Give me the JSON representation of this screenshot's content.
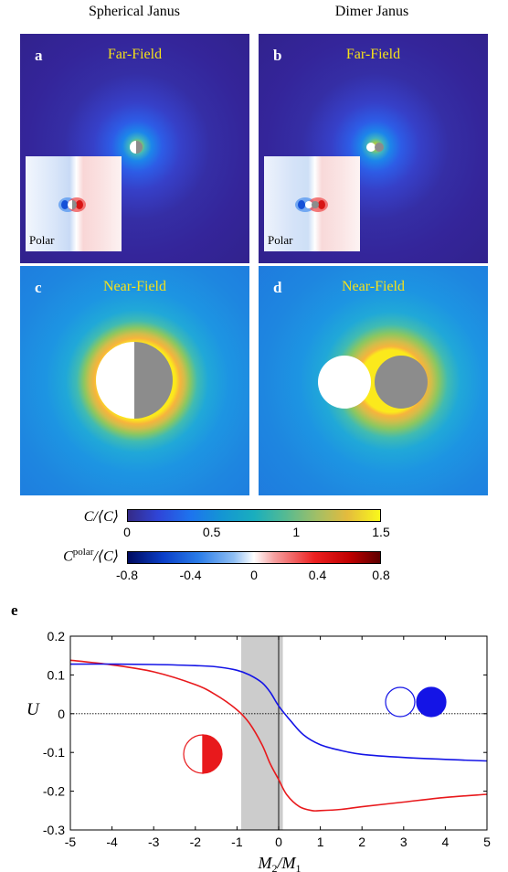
{
  "columns": {
    "left_title": "Spherical Janus",
    "right_title": "Dimer Janus"
  },
  "panels": {
    "a": {
      "letter": "a",
      "title": "Far-Field",
      "inset_label": "Polar"
    },
    "b": {
      "letter": "b",
      "title": "Far-Field",
      "inset_label": "Polar"
    },
    "c": {
      "letter": "c",
      "title": "Near-Field"
    },
    "d": {
      "letter": "d",
      "title": "Near-Field"
    }
  },
  "colorbars": {
    "concentration": {
      "label": "C/⟨C⟩",
      "ticks": [
        "0",
        "0.5",
        "1",
        "1.5"
      ],
      "range": [
        0,
        1.5
      ]
    },
    "polar": {
      "label_base": "C",
      "label_sup": "polar",
      "label_rest": "/⟨C⟩",
      "ticks": [
        "-0.8",
        "-0.4",
        "0",
        "0.4",
        "0.8"
      ],
      "range": [
        -0.8,
        0.8
      ]
    }
  },
  "chart_data": {
    "type": "line",
    "panel_letter": "e",
    "xlabel": "M2/M1",
    "ylabel": "U",
    "xlim": [
      -5,
      5
    ],
    "ylim": [
      -0.3,
      0.2
    ],
    "x_ticks": [
      "-5",
      "-4",
      "-3",
      "-2",
      "-1",
      "0",
      "1",
      "2",
      "3",
      "4",
      "5"
    ],
    "y_ticks": [
      "0.2",
      "0.1",
      "0",
      "-0.1",
      "-0.2",
      "-0.3"
    ],
    "shaded_region": [
      -0.9,
      0.1
    ],
    "zero_line": 0,
    "vertical_line": 0,
    "series": [
      {
        "color": "#e8191c",
        "x": [
          -5,
          -4,
          -3,
          -2,
          -1.5,
          -1,
          -0.7,
          -0.4,
          -0.2,
          0,
          0.2,
          0.5,
          0.8,
          1,
          1.5,
          2,
          3,
          4,
          5
        ],
        "y": [
          0.138,
          0.126,
          0.108,
          0.075,
          0.048,
          0.01,
          -0.025,
          -0.08,
          -0.13,
          -0.17,
          -0.21,
          -0.24,
          -0.25,
          -0.25,
          -0.247,
          -0.24,
          -0.228,
          -0.216,
          -0.208
        ]
      },
      {
        "color": "#1414e6",
        "x": [
          -5,
          -4,
          -3,
          -2,
          -1.5,
          -1,
          -0.7,
          -0.4,
          -0.2,
          0,
          0.3,
          0.6,
          1,
          1.5,
          2,
          3,
          4,
          5
        ],
        "y": [
          0.128,
          0.128,
          0.127,
          0.124,
          0.121,
          0.112,
          0.1,
          0.08,
          0.055,
          0.02,
          -0.02,
          -0.055,
          -0.08,
          -0.095,
          -0.105,
          -0.113,
          -0.118,
          -0.122
        ]
      }
    ]
  }
}
